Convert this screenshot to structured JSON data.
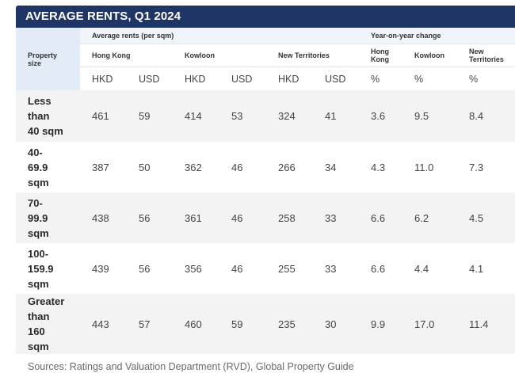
{
  "title": "AVERAGE RENTS, Q1 2024",
  "header": {
    "property_size": "Property\nsize",
    "group_rents": "Average rents (per sqm)",
    "group_yoy": "Year-on-year change",
    "regions_rents": [
      "Hong Kong",
      "Kowloon",
      "New Territories"
    ],
    "regions_yoy": [
      "Hong\nKong",
      "Kowloon",
      "New\nTerritories"
    ],
    "units": [
      "HKD",
      "USD",
      "HKD",
      "USD",
      "HKD",
      "USD",
      "%",
      "%",
      "%"
    ]
  },
  "rows": [
    {
      "label": "Less\nthan\n40 sqm",
      "values": [
        "461",
        "59",
        "414",
        "53",
        "324",
        "41",
        "3.6",
        "9.5",
        "8.4"
      ]
    },
    {
      "label": "40-\n69.9\nsqm",
      "values": [
        "387",
        "50",
        "362",
        "46",
        "266",
        "34",
        "4.3",
        "11.0",
        "7.3"
      ]
    },
    {
      "label": "70-\n99.9\nsqm",
      "values": [
        "438",
        "56",
        "361",
        "46",
        "258",
        "33",
        "6.6",
        "6.2",
        "4.5"
      ]
    },
    {
      "label": "100-\n159.9\nsqm",
      "values": [
        "439",
        "56",
        "356",
        "46",
        "255",
        "33",
        "6.6",
        "4.4",
        "4.1"
      ]
    },
    {
      "label": "Greater\nthan\n160\nsqm",
      "values": [
        "443",
        "57",
        "460",
        "59",
        "235",
        "30",
        "9.9",
        "17.0",
        "11.4"
      ]
    }
  ],
  "source": "Sources: Ratings and Valuation Department (RVD), Global Property Guide",
  "colors": {
    "title_bg": "#1f3566",
    "header_bg": "#e2ebf6",
    "shade": "#f3f3f3"
  }
}
